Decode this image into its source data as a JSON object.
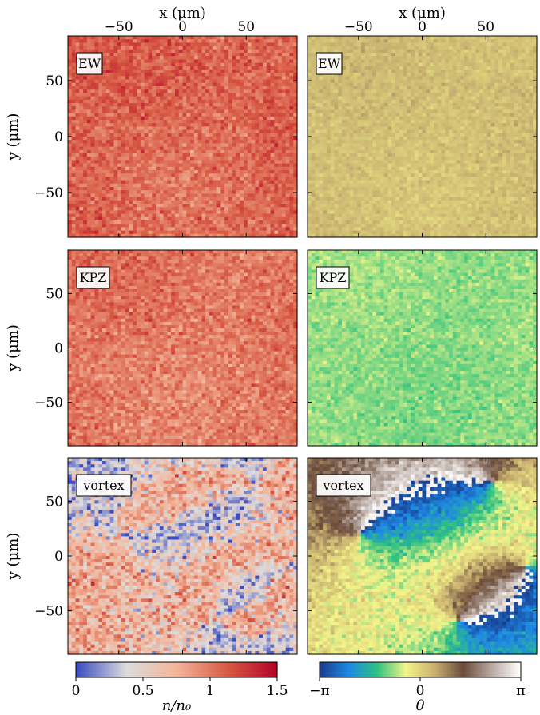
{
  "chart_data": {
    "type": "heatmap",
    "axes": {
      "x_label": "x (μm)",
      "y_label": "y (μm)",
      "xlim": [
        -90,
        90
      ],
      "ylim": [
        -90,
        90
      ],
      "x_ticks": [
        -50,
        0,
        50
      ],
      "y_ticks": [
        50,
        0,
        -50
      ],
      "x_tick_labels": [
        "−50",
        "0",
        "50"
      ],
      "y_tick_labels": [
        "50",
        "0",
        "−50"
      ]
    },
    "panels": [
      {
        "label": "EW",
        "quantity": "density",
        "mean": 1.08,
        "std": 0.17
      },
      {
        "label": "EW",
        "quantity": "phase",
        "mean": 0.25,
        "std": 0.22
      },
      {
        "label": "KPZ",
        "quantity": "density",
        "mean": 1.0,
        "std": 0.17
      },
      {
        "label": "KPZ",
        "quantity": "phase",
        "mean": -0.9,
        "std": 0.25
      },
      {
        "label": "vortex",
        "quantity": "density",
        "mean": 0.6,
        "std": 0.3
      },
      {
        "label": "vortex",
        "quantity": "phase",
        "mean": 0,
        "std": 1.8
      }
    ],
    "colorbars": [
      {
        "quantity": "density",
        "label": "n/n₀",
        "range": [
          0,
          1.5
        ],
        "ticks": [
          0,
          0.5,
          1,
          1.5
        ],
        "tick_labels": [
          "0",
          "0.5",
          "1",
          "1.5"
        ],
        "colormap": [
          "#3b4cc0",
          "#dddcdc",
          "#f3b59a",
          "#d85b45",
          "#b40426"
        ]
      },
      {
        "quantity": "phase",
        "label": "θ",
        "range": [
          -3.1416,
          3.1416
        ],
        "ticks": [
          -3.1416,
          0,
          3.1416
        ],
        "tick_labels": [
          "−π",
          "0",
          "π"
        ],
        "colormap": [
          "#1a3e8f",
          "#1e88e5",
          "#2ec27e",
          "#f5f58a",
          "#c8b070",
          "#6b4b3a",
          "#b8a8a0",
          "#ffffff"
        ]
      }
    ]
  }
}
